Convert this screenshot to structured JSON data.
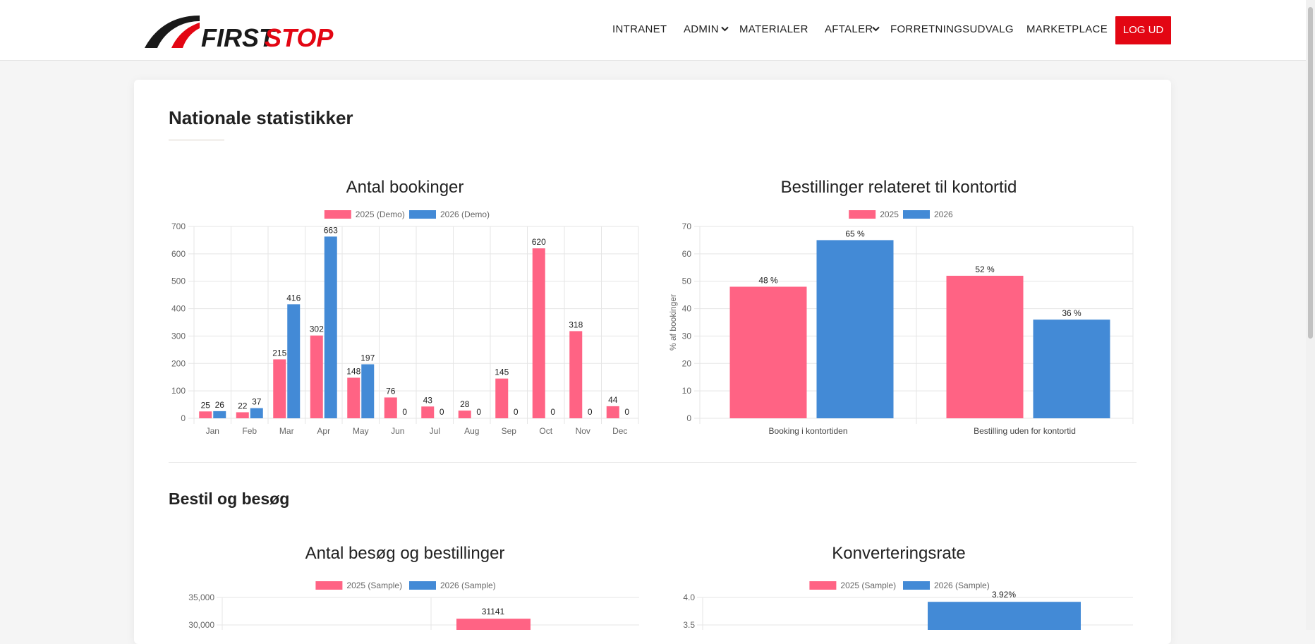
{
  "brand": {
    "name_first": "FIRST",
    "name_second": "STOP",
    "logo_red": "#e30613",
    "logo_dark": "#1a1a1a"
  },
  "nav": {
    "items": [
      "INTRANET",
      "ADMIN",
      "MATERIALER",
      "AFTALER",
      "FORRETNINGSUDVALG",
      "MARKETPLACE"
    ],
    "logout": "LOG UD"
  },
  "page": {
    "title": "Nationale statistikker",
    "section2_title": "Bestil og besøg"
  },
  "colors": {
    "pink": "#ff6384",
    "blue": "#438ad6",
    "accent": "#e30613"
  },
  "chart_data": [
    {
      "type": "bar",
      "title": "Antal bookinger",
      "categories": [
        "Jan",
        "Feb",
        "Mar",
        "Apr",
        "May",
        "Jun",
        "Jul",
        "Aug",
        "Sep",
        "Oct",
        "Nov",
        "Dec"
      ],
      "series": [
        {
          "name": "2025 (Demo)",
          "values": [
            25,
            22,
            215,
            302,
            148,
            76,
            43,
            28,
            145,
            620,
            318,
            44
          ]
        },
        {
          "name": "2026 (Demo)",
          "values": [
            26,
            37,
            416,
            663,
            197,
            0,
            0,
            0,
            0,
            0,
            0,
            0
          ]
        }
      ],
      "ylim": [
        0,
        700
      ],
      "yticks": [
        0,
        100,
        200,
        300,
        400,
        500,
        600,
        700
      ],
      "grid": true,
      "legend": "top"
    },
    {
      "type": "bar",
      "title": "Bestillinger relateret til kontortid",
      "categories": [
        "Booking i kontortiden",
        "Bestilling uden for kontortid"
      ],
      "series": [
        {
          "name": "2025",
          "values": [
            48,
            52
          ]
        },
        {
          "name": "2026",
          "values": [
            65,
            36
          ]
        }
      ],
      "value_labels": [
        [
          "48 %",
          "52 %"
        ],
        [
          "65 %",
          "36 %"
        ]
      ],
      "ylabel": "% af bookinger",
      "ylim": [
        0,
        70
      ],
      "yticks": [
        0,
        10,
        20,
        30,
        40,
        50,
        60,
        70
      ],
      "grid": true,
      "legend": "top"
    },
    {
      "type": "bar",
      "title": "Antal besøg og bestillinger",
      "series": [
        {
          "name": "2025 (Sample)"
        },
        {
          "name": "2026 (Sample)"
        }
      ],
      "visible_ticks": [
        "35,000",
        "30,000"
      ],
      "visible_bar_label": "31141",
      "visible_bar_value": 31141,
      "grid": true,
      "legend": "top"
    },
    {
      "type": "bar",
      "title": "Konverteringsrate",
      "series": [
        {
          "name": "2025 (Sample)"
        },
        {
          "name": "2026 (Sample)"
        }
      ],
      "visible_ticks": [
        "4.0",
        "3.5"
      ],
      "visible_bar_label": "3.92%",
      "visible_bar_value": 3.92,
      "grid": true,
      "legend": "top"
    }
  ]
}
